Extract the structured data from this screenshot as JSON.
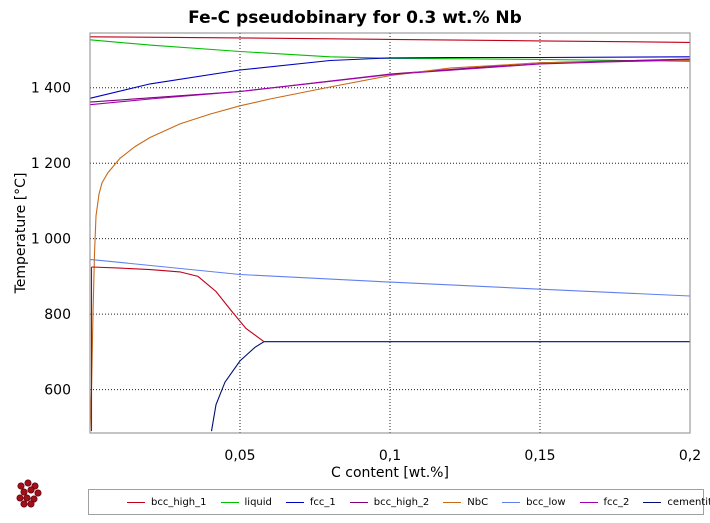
{
  "chart_data": {
    "type": "line",
    "title": "Fe-C pseudobinary for 0.3 wt.% Nb",
    "xlabel": "C content [wt.%]",
    "ylabel": "Temperature [°C]",
    "xlim": [
      0.0,
      0.2
    ],
    "ylim": [
      485,
      1545
    ],
    "grid": true,
    "x_ticks": [
      0.05,
      0.1,
      0.15,
      0.2
    ],
    "x_tick_labels": [
      "0,05",
      "0,1",
      "0,15",
      "0,2"
    ],
    "y_ticks": [
      600,
      800,
      1000,
      1200,
      1400
    ],
    "y_tick_labels": [
      "600",
      "800",
      "1 000",
      "1 200",
      "1 400"
    ],
    "legend_position": "bottom",
    "series": [
      {
        "name": "bcc_high_1",
        "color": "#c0001a",
        "x": [
          0,
          0.05,
          0.1,
          0.15,
          0.2
        ],
        "y": [
          1535,
          1532,
          1528,
          1524,
          1520
        ]
      },
      {
        "name": "liquid",
        "color": "#00c000",
        "x": [
          0,
          0.02,
          0.05,
          0.08,
          0.1,
          0.12,
          0.15,
          0.2
        ],
        "y": [
          1527,
          1513,
          1496,
          1482,
          1478,
          1477,
          1475,
          1470
        ]
      },
      {
        "name": "fcc_1",
        "color": "#0000c0",
        "x": [
          0,
          0.02,
          0.05,
          0.08,
          0.1,
          0.12,
          0.15,
          0.2
        ],
        "y": [
          1372,
          1410,
          1447,
          1472,
          1479,
          1480,
          1480,
          1482
        ]
      },
      {
        "name": "bcc_high_2",
        "color": "#80007a",
        "x": [
          0,
          0.05,
          0.1,
          0.15,
          0.2
        ],
        "y": [
          1362,
          1390,
          1436,
          1466,
          1476
        ]
      },
      {
        "name": "NbC",
        "color": "#c86a1a",
        "x": [
          0,
          0.0005,
          0.001,
          0.0015,
          0.002,
          0.003,
          0.004,
          0.006,
          0.01,
          0.015,
          0.02,
          0.03,
          0.04,
          0.05,
          0.06,
          0.08,
          0.1,
          0.12,
          0.15,
          0.2
        ],
        "y": [
          490,
          600,
          800,
          960,
          1060,
          1118,
          1148,
          1175,
          1213,
          1244,
          1268,
          1304,
          1330,
          1352,
          1370,
          1402,
          1432,
          1452,
          1466,
          1472
        ]
      },
      {
        "name": "bcc_low",
        "color": "#6080f0",
        "x": [
          0,
          0.05,
          0.1,
          0.15,
          0.2
        ],
        "y": [
          945,
          905,
          885,
          866,
          848
        ]
      },
      {
        "name": "fcc_2",
        "color": "#a000b0",
        "x": [
          0,
          0.02,
          0.05,
          0.1,
          0.15,
          0.2
        ],
        "y": [
          1355,
          1370,
          1390,
          1435,
          1463,
          1475
        ]
      },
      {
        "name": "cementite",
        "color": "#001070",
        "x": [
          0.0405,
          0.042,
          0.045,
          0.05,
          0.055,
          0.058,
          0.1,
          0.15,
          0.2
        ],
        "y": [
          490,
          560,
          620,
          676,
          712,
          727,
          727,
          727,
          727
        ]
      }
    ],
    "extra_segments": [
      {
        "name": "bcc_high_1-boundary",
        "color": "#c0001a",
        "x": [
          0.0005,
          0.01,
          0.02,
          0.03,
          0.036,
          0.042,
          0.047,
          0.052,
          0.058
        ],
        "y": [
          925,
          922,
          918,
          912,
          900,
          860,
          810,
          762,
          727
        ]
      },
      {
        "name": "bcc_high_1-vertical",
        "color": "#c0001a",
        "x": [
          0.0005,
          0.0005
        ],
        "y": [
          490,
          925
        ]
      }
    ]
  }
}
